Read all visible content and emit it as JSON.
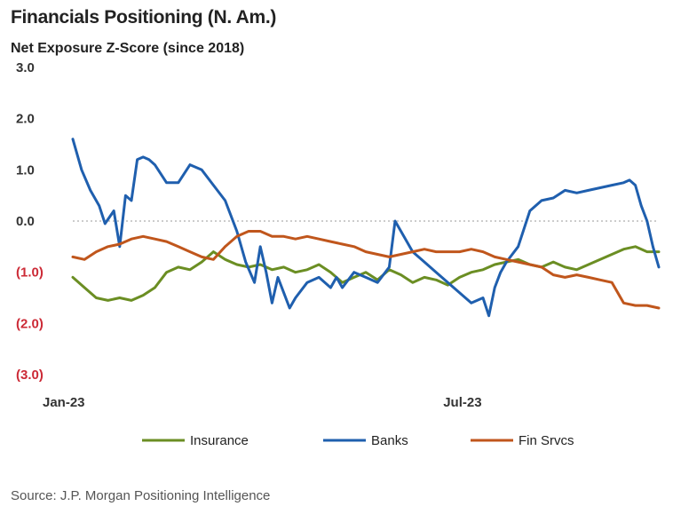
{
  "chart_data": {
    "type": "line",
    "title": "Financials Positioning (N. Am.)",
    "subtitle": "Net Exposure Z-Score (since 2018)",
    "source": "Source: J.P. Morgan Positioning Intelligence",
    "ylim": [
      -3.0,
      3.0
    ],
    "y_ticks": [
      {
        "value": 3.0,
        "label": "3.0",
        "negative": false
      },
      {
        "value": 2.0,
        "label": "2.0",
        "negative": false
      },
      {
        "value": 1.0,
        "label": "1.0",
        "negative": false
      },
      {
        "value": 0.0,
        "label": "0.0",
        "negative": false
      },
      {
        "value": -1.0,
        "label": "(1.0)",
        "negative": true
      },
      {
        "value": -2.0,
        "label": "(2.0)",
        "negative": true
      },
      {
        "value": -3.0,
        "label": "(3.0)",
        "negative": true
      }
    ],
    "xlim": [
      0,
      100
    ],
    "x_ticks": [
      {
        "value": 0,
        "label": "Jan-23"
      },
      {
        "value": 66.5,
        "label": "Jul-23"
      }
    ],
    "zero_line": "dotted",
    "legend_position": "bottom",
    "series": [
      {
        "name": "Insurance",
        "color": "#6b8e23",
        "x": [
          0,
          2,
          4,
          6,
          8,
          10,
          12,
          14,
          16,
          18,
          20,
          22,
          24,
          26,
          28,
          30,
          32,
          34,
          36,
          38,
          40,
          42,
          44,
          46,
          48,
          50,
          52,
          54,
          56,
          58,
          60,
          62,
          64,
          66,
          68,
          70,
          72,
          74,
          76,
          78,
          80,
          82,
          84,
          86,
          88,
          90,
          92,
          94,
          96,
          98,
          100
        ],
        "y": [
          -1.1,
          -1.3,
          -1.5,
          -1.55,
          -1.5,
          -1.55,
          -1.45,
          -1.3,
          -1.0,
          -0.9,
          -0.95,
          -0.8,
          -0.6,
          -0.75,
          -0.85,
          -0.9,
          -0.85,
          -0.95,
          -0.9,
          -1.0,
          -0.95,
          -0.85,
          -1.0,
          -1.2,
          -1.1,
          -1.0,
          -1.15,
          -0.95,
          -1.05,
          -1.2,
          -1.1,
          -1.15,
          -1.25,
          -1.1,
          -1.0,
          -0.95,
          -0.85,
          -0.8,
          -0.75,
          -0.85,
          -0.9,
          -0.8,
          -0.9,
          -0.95,
          -0.85,
          -0.75,
          -0.65,
          -0.55,
          -0.5,
          -0.6,
          -0.6
        ]
      },
      {
        "name": "Banks",
        "color": "#1f5fae",
        "x": [
          0,
          1.5,
          3,
          4.5,
          5.5,
          7,
          8,
          9,
          10,
          11,
          12,
          13,
          14,
          16,
          18,
          20,
          22,
          24,
          26,
          28,
          29.5,
          31,
          32,
          33,
          34,
          35,
          36,
          37,
          38,
          40,
          42,
          44,
          45,
          46,
          48,
          50,
          52,
          54,
          55,
          56,
          58,
          60,
          62,
          64,
          66,
          68,
          70,
          71,
          72,
          73,
          74,
          76,
          78,
          80,
          82,
          84,
          86,
          88,
          90,
          92,
          94,
          95,
          96,
          97,
          98,
          99,
          100
        ],
        "y": [
          1.6,
          1.0,
          0.6,
          0.3,
          -0.05,
          0.2,
          -0.5,
          0.5,
          0.4,
          1.2,
          1.25,
          1.2,
          1.1,
          0.75,
          0.75,
          1.1,
          1.0,
          0.7,
          0.4,
          -0.2,
          -0.8,
          -1.2,
          -0.5,
          -1.0,
          -1.6,
          -1.1,
          -1.4,
          -1.7,
          -1.5,
          -1.2,
          -1.1,
          -1.3,
          -1.1,
          -1.3,
          -1.0,
          -1.1,
          -1.2,
          -0.9,
          0.0,
          -0.2,
          -0.6,
          -0.8,
          -1.0,
          -1.2,
          -1.4,
          -1.6,
          -1.5,
          -1.85,
          -1.3,
          -1.0,
          -0.8,
          -0.5,
          0.2,
          0.4,
          0.45,
          0.6,
          0.55,
          0.6,
          0.65,
          0.7,
          0.75,
          0.8,
          0.7,
          0.3,
          0.0,
          -0.5,
          -0.9
        ]
      },
      {
        "name": "Fin Srvcs",
        "color": "#c0561c",
        "x": [
          0,
          2,
          4,
          6,
          8,
          10,
          12,
          14,
          16,
          18,
          20,
          22,
          24,
          26,
          28,
          30,
          32,
          34,
          36,
          38,
          40,
          42,
          44,
          46,
          48,
          50,
          52,
          54,
          56,
          58,
          60,
          62,
          64,
          66,
          68,
          70,
          72,
          74,
          76,
          78,
          80,
          82,
          84,
          86,
          88,
          90,
          92,
          94,
          96,
          98,
          100
        ],
        "y": [
          -0.7,
          -0.75,
          -0.6,
          -0.5,
          -0.45,
          -0.35,
          -0.3,
          -0.35,
          -0.4,
          -0.5,
          -0.6,
          -0.7,
          -0.75,
          -0.5,
          -0.3,
          -0.2,
          -0.2,
          -0.3,
          -0.3,
          -0.35,
          -0.3,
          -0.35,
          -0.4,
          -0.45,
          -0.5,
          -0.6,
          -0.65,
          -0.7,
          -0.65,
          -0.6,
          -0.55,
          -0.6,
          -0.6,
          -0.6,
          -0.55,
          -0.6,
          -0.7,
          -0.75,
          -0.8,
          -0.85,
          -0.9,
          -1.05,
          -1.1,
          -1.05,
          -1.1,
          -1.15,
          -1.2,
          -1.6,
          -1.65,
          -1.65,
          -1.7
        ]
      }
    ]
  }
}
